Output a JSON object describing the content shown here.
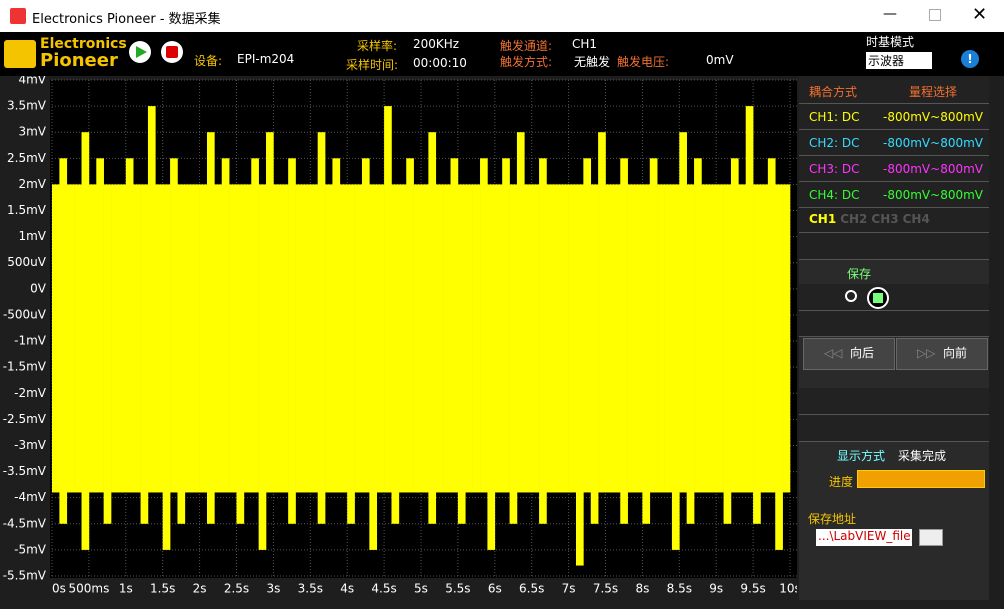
{
  "window": {
    "title": "Electronics Pioneer - 数据采集"
  },
  "toolbar": {
    "logo_top": "Electronics",
    "logo_bottom": "Pioneer",
    "device_label": "设备:",
    "device": "EPI-m204",
    "rate_label": "采样率:",
    "rate": "200KHz",
    "time_label": "采样时间:",
    "time": "00:00:10",
    "trig_ch_label": "触发通道:",
    "trig_ch": "CH1",
    "trig_mode_label": "触发方式:",
    "trig_mode": "无触发",
    "trig_v_label": "触发电压:",
    "trig_v": "0mV",
    "timebase_label": "时基模式",
    "timebase": "示波器"
  },
  "panel": {
    "coupling_header": "耦合方式",
    "range_header": "量程选择",
    "channels": [
      {
        "name": "CH1: DC",
        "range": "-800mV~800mV"
      },
      {
        "name": "CH2: DC",
        "range": "-800mV~800mV"
      },
      {
        "name": "CH3: DC",
        "range": "-800mV~800mV"
      },
      {
        "name": "CH4: DC",
        "range": "-800mV~800mV"
      }
    ],
    "tabs": [
      "CH1",
      "CH2",
      "CH3",
      "CH4"
    ],
    "save": "保存",
    "back": "向后",
    "forward": "向前",
    "display_label": "显示方式",
    "status": "采集完成",
    "progress": "进度",
    "path_label": "保存地址",
    "path": "...\\LabVIEW_file"
  },
  "chart_data": {
    "type": "range",
    "xlim": [
      0,
      10
    ],
    "ylim": [
      -5.5,
      4
    ],
    "grid": true,
    "xticks": [
      {
        "value": 0,
        "label": "0s"
      },
      {
        "value": 0.5,
        "label": "500ms"
      },
      {
        "value": 1,
        "label": "1s"
      },
      {
        "value": 1.5,
        "label": "1.5s"
      },
      {
        "value": 2,
        "label": "2s"
      },
      {
        "value": 2.5,
        "label": "2.5s"
      },
      {
        "value": 3,
        "label": "3s"
      },
      {
        "value": 3.5,
        "label": "3.5s"
      },
      {
        "value": 4,
        "label": "4s"
      },
      {
        "value": 4.5,
        "label": "4.5s"
      },
      {
        "value": 5,
        "label": "5s"
      },
      {
        "value": 5.5,
        "label": "5.5s"
      },
      {
        "value": 6,
        "label": "6s"
      },
      {
        "value": 6.5,
        "label": "6.5s"
      },
      {
        "value": 7,
        "label": "7s"
      },
      {
        "value": 7.5,
        "label": "7.5s"
      },
      {
        "value": 8,
        "label": "8s"
      },
      {
        "value": 8.5,
        "label": "8.5s"
      },
      {
        "value": 9,
        "label": "9s"
      },
      {
        "value": 9.5,
        "label": "9.5s"
      },
      {
        "value": 10,
        "label": "10s"
      }
    ],
    "yticks": [
      {
        "value": 4,
        "label": "4mV"
      },
      {
        "value": 3.5,
        "label": "3.5mV"
      },
      {
        "value": 3,
        "label": "3mV"
      },
      {
        "value": 2.5,
        "label": "2.5mV"
      },
      {
        "value": 2,
        "label": "2mV"
      },
      {
        "value": 1.5,
        "label": "1.5mV"
      },
      {
        "value": 1,
        "label": "1mV"
      },
      {
        "value": 0.5,
        "label": "500uV"
      },
      {
        "value": 0,
        "label": "0V"
      },
      {
        "value": -0.5,
        "label": "-500uV"
      },
      {
        "value": -1,
        "label": "-1mV"
      },
      {
        "value": -1.5,
        "label": "-1.5mV"
      },
      {
        "value": -2,
        "label": "-2mV"
      },
      {
        "value": -2.5,
        "label": "-2.5mV"
      },
      {
        "value": -3,
        "label": "-3mV"
      },
      {
        "value": -3.5,
        "label": "-3.5mV"
      },
      {
        "value": -4,
        "label": "-4mV"
      },
      {
        "value": -4.5,
        "label": "-4.5mV"
      },
      {
        "value": -5,
        "label": "-5mV"
      },
      {
        "value": -5.5,
        "label": "-5.5mV"
      }
    ],
    "x": [
      0,
      0.1,
      0.2,
      0.3,
      0.4,
      0.5,
      0.6,
      0.7,
      0.8,
      0.9,
      1,
      1.1,
      1.2,
      1.3,
      1.4,
      1.5,
      1.6,
      1.7,
      1.8,
      1.9,
      2,
      2.1,
      2.2,
      2.3,
      2.4,
      2.5,
      2.6,
      2.7,
      2.8,
      2.9,
      3,
      3.1,
      3.2,
      3.3,
      3.4,
      3.5,
      3.6,
      3.7,
      3.8,
      3.9,
      4,
      4.1,
      4.2,
      4.3,
      4.4,
      4.5,
      4.6,
      4.7,
      4.8,
      4.9,
      5,
      5.1,
      5.2,
      5.3,
      5.4,
      5.5,
      5.6,
      5.7,
      5.8,
      5.9,
      6,
      6.1,
      6.2,
      6.3,
      6.4,
      6.5,
      6.6,
      6.7,
      6.8,
      6.9,
      7,
      7.1,
      7.2,
      7.3,
      7.4,
      7.5,
      7.6,
      7.7,
      7.8,
      7.9,
      8,
      8.1,
      8.2,
      8.3,
      8.4,
      8.5,
      8.6,
      8.7,
      8.8,
      8.9,
      9,
      9.1,
      9.2,
      9.3,
      9.4,
      9.5,
      9.6,
      9.7,
      9.8,
      9.9
    ],
    "series": [
      {
        "name": "CH1",
        "color": "#ffff00",
        "high": [
          2,
          2.5,
          2,
          2,
          3,
          2,
          2.5,
          2,
          2,
          2,
          2.5,
          2,
          2,
          3.5,
          2,
          2,
          2.5,
          2,
          2,
          2,
          2,
          3,
          2,
          2.5,
          2,
          2,
          2,
          2.5,
          2,
          3,
          2,
          2,
          2.5,
          2,
          2,
          2,
          3,
          2,
          2.5,
          2,
          2,
          2,
          2.5,
          2,
          2,
          3.5,
          2,
          2,
          2.5,
          2,
          2,
          3,
          2,
          2,
          2.5,
          2,
          2,
          2,
          2.5,
          2,
          2,
          2.5,
          2,
          3,
          2,
          2,
          2.5,
          2,
          2,
          2,
          2,
          2,
          2.5,
          2,
          3,
          2,
          2,
          2.5,
          2,
          2,
          2,
          2.5,
          2,
          2,
          2,
          3,
          2,
          2.5,
          2,
          2,
          2,
          2,
          2.5,
          2,
          3.5,
          2,
          2,
          2.5,
          2,
          2
        ],
        "low": [
          -3.9,
          -4.5,
          -3.9,
          -3.9,
          -5,
          -3.9,
          -3.9,
          -4.5,
          -3.9,
          -3.9,
          -3.9,
          -3.9,
          -4.5,
          -3.9,
          -3.9,
          -5,
          -3.9,
          -4.5,
          -3.9,
          -3.9,
          -3.9,
          -4.5,
          -3.9,
          -3.9,
          -3.9,
          -4.5,
          -3.9,
          -3.9,
          -5,
          -3.9,
          -3.9,
          -3.9,
          -4.5,
          -3.9,
          -3.9,
          -3.9,
          -4.5,
          -3.9,
          -3.9,
          -3.9,
          -4.5,
          -3.9,
          -3.9,
          -5,
          -3.9,
          -3.9,
          -4.5,
          -3.9,
          -3.9,
          -3.9,
          -3.9,
          -4.5,
          -3.9,
          -3.9,
          -3.9,
          -4.5,
          -3.9,
          -3.9,
          -3.9,
          -5,
          -3.9,
          -3.9,
          -4.5,
          -3.9,
          -3.9,
          -3.9,
          -4.5,
          -3.9,
          -3.9,
          -3.9,
          -3.9,
          -5.3,
          -3.9,
          -4.5,
          -3.9,
          -3.9,
          -3.9,
          -4.5,
          -3.9,
          -3.9,
          -4.5,
          -3.9,
          -3.9,
          -3.9,
          -5,
          -3.9,
          -4.5,
          -3.9,
          -3.9,
          -3.9,
          -3.9,
          -4.5,
          -3.9,
          -3.9,
          -3.9,
          -4.5,
          -3.9,
          -3.9,
          -5,
          -3.9
        ]
      }
    ]
  }
}
